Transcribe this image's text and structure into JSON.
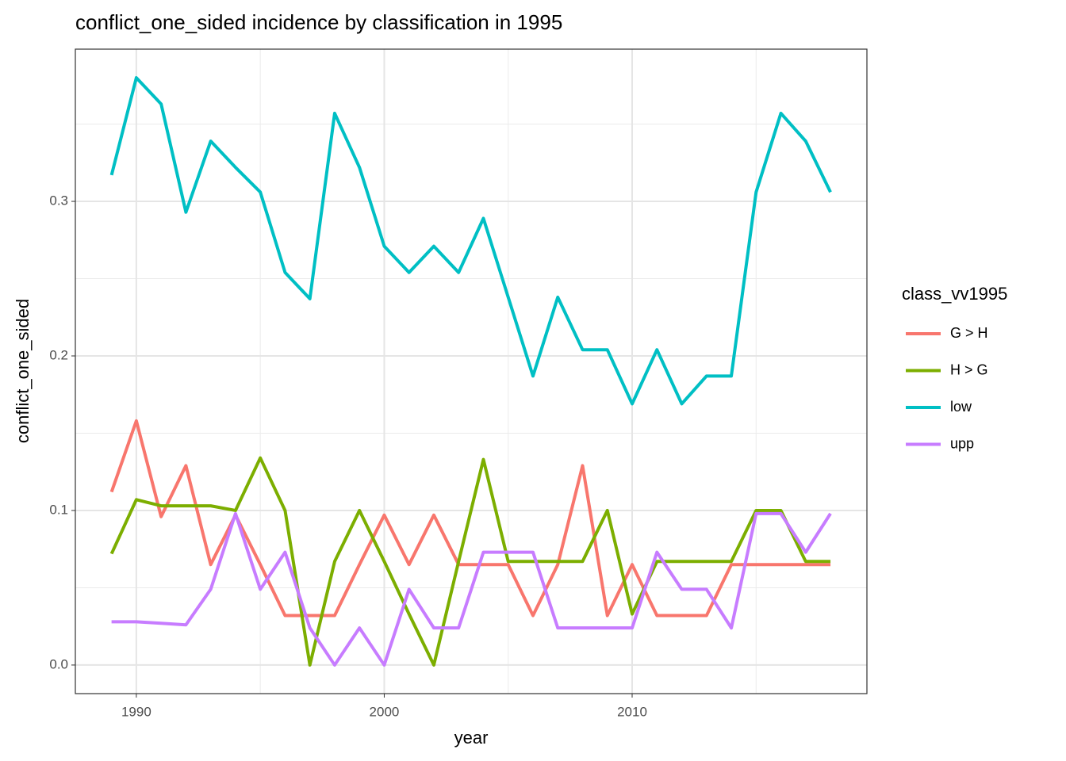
{
  "chart_data": {
    "type": "line",
    "title": "conflict_one_sided  incidence by classification in 1995",
    "x_label": "year",
    "y_label": "conflict_one_sided",
    "legend_title": "class_vv1995",
    "x": [
      1989,
      1990,
      1991,
      1992,
      1993,
      1994,
      1995,
      1996,
      1997,
      1998,
      1999,
      2000,
      2001,
      2002,
      2003,
      2004,
      2005,
      2006,
      2007,
      2008,
      2009,
      2010,
      2011,
      2012,
      2013,
      2014,
      2015,
      2016,
      2017,
      2018
    ],
    "series": [
      {
        "name": "G > H",
        "color": "#f8766d",
        "values": [
          0.112,
          0.158,
          0.096,
          0.129,
          0.065,
          0.097,
          0.065,
          0.032,
          0.032,
          0.032,
          0.065,
          0.097,
          0.065,
          0.097,
          0.065,
          0.065,
          0.065,
          0.032,
          0.065,
          0.129,
          0.032,
          0.065,
          0.032,
          0.032,
          0.032,
          0.065,
          0.065,
          0.065,
          0.065,
          0.065
        ]
      },
      {
        "name": "H > G",
        "color": "#7cae00",
        "values": [
          0.072,
          0.107,
          0.103,
          0.103,
          0.103,
          0.1,
          0.134,
          0.1,
          0,
          0.067,
          0.1,
          0.067,
          0.033,
          0,
          0.067,
          0.133,
          0.067,
          0.067,
          0.067,
          0.067,
          0.1,
          0.033,
          0.067,
          0.067,
          0.067,
          0.067,
          0.1,
          0.1,
          0.067,
          0.067
        ]
      },
      {
        "name": "low",
        "color": "#00bfc4",
        "values": [
          0.317,
          0.38,
          0.363,
          0.293,
          0.339,
          0.322,
          0.306,
          0.254,
          0.237,
          0.357,
          0.322,
          0.271,
          0.254,
          0.271,
          0.254,
          0.289,
          0.238,
          0.187,
          0.238,
          0.204,
          0.204,
          0.169,
          0.204,
          0.169,
          0.187,
          0.187,
          0.306,
          0.357,
          0.339,
          0.306
        ]
      },
      {
        "name": "upp",
        "color": "#c77cff",
        "values": [
          0.028,
          0.028,
          0.027,
          0.026,
          0.049,
          0.098,
          0.049,
          0.073,
          0.024,
          0,
          0.024,
          0,
          0.049,
          0.024,
          0.024,
          0.073,
          0.073,
          0.073,
          0.024,
          0.024,
          0.024,
          0.024,
          0.073,
          0.049,
          0.049,
          0.024,
          0.098,
          0.098,
          0.073,
          0.098
        ]
      }
    ],
    "xlim": [
      1987.54,
      2019.47
    ],
    "ylim": [
      -0.0185,
      0.3985
    ],
    "xticks": [
      1990,
      2000,
      2010
    ],
    "yticks": [
      {
        "value": 0,
        "label": "0.0"
      },
      0.1,
      0.2,
      0.3
    ],
    "minor_xticks": [
      1995,
      2005,
      2015
    ],
    "minor_yticks": [
      0.05,
      0.15,
      0.25,
      0.35
    ],
    "grid": true
  }
}
